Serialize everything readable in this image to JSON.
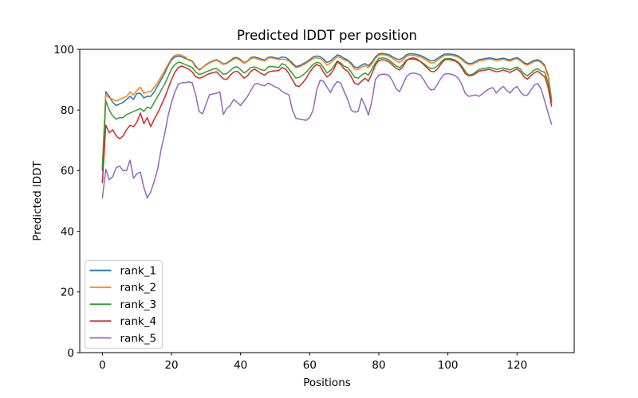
{
  "figure": {
    "background": "#ffffff",
    "frame_color": "#000000"
  },
  "chart_data": {
    "type": "line",
    "title": "Predicted lDDT per position",
    "xlabel": "Positions",
    "ylabel": "Predicted lDDT",
    "x_ticks": [
      0,
      20,
      40,
      60,
      80,
      100,
      120
    ],
    "y_ticks": [
      0,
      20,
      40,
      60,
      80,
      100
    ],
    "xlim": [
      -6.55,
      136.55
    ],
    "ylim": [
      0,
      100
    ],
    "grid": false,
    "legend_position": "lower left",
    "x_start": 0,
    "x_step": 1,
    "series": [
      {
        "name": "rank_1",
        "color": "#1f77b4",
        "values": [
          60,
          86,
          84.5,
          82.5,
          81.5,
          82,
          82.5,
          83.5,
          84.5,
          83.5,
          85.5,
          85.5,
          84,
          84.5,
          84.5,
          86,
          88,
          90,
          92,
          94.5,
          96.5,
          97.5,
          97.8,
          97.5,
          97,
          96.6,
          96.2,
          94.5,
          93.2,
          94,
          95,
          95.7,
          96.2,
          96.6,
          96,
          95.2,
          95.5,
          96.3,
          97.2,
          97.3,
          96.6,
          95.6,
          96.2,
          97.3,
          97.5,
          97.2,
          96.8,
          96.5,
          97.4,
          97.5,
          97.2,
          97,
          97.5,
          97.3,
          96.6,
          95.5,
          94.4,
          94.6,
          95.2,
          95.8,
          96.6,
          97.5,
          97.8,
          97.6,
          96.8,
          95.7,
          96.2,
          97.2,
          98.2,
          97.8,
          97,
          96.5,
          95.5,
          94.2,
          94,
          94.8,
          95.3,
          94.6,
          95.8,
          97.5,
          98.5,
          98.7,
          98.5,
          98.2,
          97.5,
          96.9,
          96.6,
          97.2,
          98.2,
          98.6,
          98.5,
          98.3,
          98,
          97.5,
          96.8,
          96.2,
          96.3,
          97,
          97.8,
          98.4,
          98.5,
          98.4,
          98.2,
          97.8,
          97,
          96,
          95.3,
          95.4,
          96,
          96.6,
          96.8,
          97,
          97.2,
          97,
          96.7,
          96.9,
          97.1,
          96.8,
          96.5,
          97,
          97.3,
          96.6,
          95.6,
          95.2,
          95.8,
          96.4,
          96.6,
          96,
          94.8,
          91.5,
          83.5
        ]
      },
      {
        "name": "rank_2",
        "color": "#ff7f0e",
        "values": [
          62,
          85,
          84,
          83.5,
          83,
          83.5,
          84,
          84.5,
          86,
          85,
          86.5,
          87.5,
          85.5,
          86,
          86,
          87.5,
          89,
          91,
          93,
          95,
          97,
          98,
          98.3,
          98,
          97.5,
          96.4,
          96,
          94,
          93.5,
          94,
          94.8,
          95.5,
          96,
          96.4,
          95.8,
          95,
          95.3,
          96,
          96.8,
          97,
          96.3,
          95.4,
          96,
          97,
          97.2,
          96.8,
          96.5,
          96.2,
          97.1,
          97.2,
          96.9,
          96.6,
          96.8,
          96.6,
          96.2,
          95,
          94,
          94.2,
          94.8,
          95.4,
          96.2,
          97,
          97.2,
          97,
          96.2,
          94.8,
          95.5,
          96.5,
          97.6,
          97.2,
          96.5,
          96.2,
          95,
          93.5,
          93.3,
          94.2,
          94.6,
          94,
          95.2,
          97,
          98.1,
          98.3,
          98.1,
          97.8,
          97,
          96.2,
          95.7,
          96.5,
          97.7,
          98.1,
          98,
          97.8,
          97.5,
          97,
          96.2,
          95.5,
          95.6,
          96.4,
          97.3,
          98,
          98.1,
          98,
          97.8,
          97.4,
          96.6,
          95.6,
          95,
          95.1,
          95.6,
          96.2,
          96.4,
          96.6,
          96.8,
          96.6,
          96.3,
          96.5,
          96.7,
          96.4,
          96.1,
          96.6,
          96.9,
          96.2,
          95.2,
          94.8,
          95.4,
          96,
          96.2,
          95.6,
          94.4,
          91,
          83
        ]
      },
      {
        "name": "rank_3",
        "color": "#2ca02c",
        "values": [
          61,
          83,
          80,
          78,
          77,
          77.5,
          77.5,
          78.5,
          79,
          79.5,
          80,
          80.5,
          79.5,
          81,
          80.5,
          82.5,
          84.5,
          86.5,
          88.5,
          91,
          93.5,
          95,
          95.8,
          95.5,
          95,
          94.5,
          94,
          92.5,
          91.8,
          92,
          92.6,
          93,
          93.5,
          93.7,
          92.8,
          91.8,
          92,
          93,
          94,
          94.3,
          93.3,
          92.2,
          93,
          94,
          94.2,
          93.8,
          93.3,
          93,
          94.2,
          94.4,
          94.2,
          94,
          95.3,
          94.8,
          93.5,
          92,
          90.5,
          90.8,
          91.5,
          92.5,
          93.8,
          95,
          95.7,
          95.5,
          94,
          92.2,
          93,
          94.5,
          96.2,
          95.5,
          94.4,
          94,
          92.5,
          90.8,
          90.5,
          91.5,
          92.2,
          91.5,
          93.5,
          95.5,
          97,
          97.2,
          97,
          96.5,
          95.5,
          94.5,
          94,
          95,
          96.5,
          96.8,
          96.8,
          96.5,
          96,
          95.3,
          94.4,
          93.7,
          93.8,
          94.6,
          95.8,
          96.8,
          97,
          96.9,
          96.5,
          95.8,
          94.5,
          92.8,
          91.5,
          91.7,
          92.5,
          93.3,
          93.6,
          93.8,
          94,
          93.8,
          93.4,
          93.6,
          93.9,
          93.5,
          93.2,
          93.8,
          94.2,
          93.4,
          92,
          91.3,
          92.2,
          93.2,
          93.6,
          92.8,
          92.5,
          89,
          82.5
        ]
      },
      {
        "name": "rank_4",
        "color": "#d62728",
        "values": [
          56,
          75,
          72.5,
          73.5,
          71.5,
          70.5,
          71.5,
          73.5,
          75,
          74.5,
          76,
          79,
          75.5,
          77.5,
          74.5,
          77,
          79,
          81.5,
          84,
          87,
          90,
          92.5,
          94,
          94.5,
          94,
          93.5,
          92.5,
          91,
          90.5,
          90.8,
          91.5,
          92,
          92.3,
          92.6,
          91.5,
          90.3,
          90.1,
          91.5,
          92.5,
          92.8,
          91.8,
          90.5,
          91.3,
          92.8,
          93.5,
          92.8,
          92,
          91.5,
          92.5,
          92.8,
          92.9,
          93,
          94,
          93.5,
          92,
          90,
          88,
          87.8,
          89,
          90.5,
          92.5,
          94,
          95,
          94.5,
          92.5,
          90.9,
          91.8,
          93.5,
          95.9,
          95,
          93.5,
          92.8,
          91,
          88.8,
          88.4,
          89.5,
          90.5,
          89.5,
          92,
          94.8,
          96.3,
          96.6,
          96.4,
          95.8,
          94.8,
          93.7,
          93.2,
          94.3,
          96.3,
          97,
          97.2,
          96.8,
          96,
          95,
          93.8,
          92.8,
          92.6,
          93.6,
          95.2,
          96.5,
          96.7,
          96.5,
          96.2,
          95.5,
          94,
          92,
          91.3,
          91.4,
          92,
          92.8,
          93,
          93.2,
          93.4,
          93,
          92.6,
          92.8,
          93.2,
          92.8,
          92.4,
          93,
          93.6,
          92.6,
          91,
          90.2,
          91.3,
          92.3,
          92.8,
          91.8,
          91,
          87.5,
          81.3
        ]
      },
      {
        "name": "rank_5",
        "color": "#9467bd",
        "values": [
          51,
          60.5,
          57,
          58,
          61,
          61.5,
          60,
          60,
          63.5,
          57.5,
          59,
          59.5,
          54.5,
          51,
          53,
          56.5,
          60.5,
          67,
          72,
          78,
          82.5,
          86,
          88.5,
          89,
          89,
          89.3,
          89,
          85,
          79.5,
          78.7,
          82,
          85,
          85.3,
          85.5,
          86,
          78.5,
          80.5,
          81.5,
          83.5,
          82.5,
          81.5,
          83,
          84.5,
          86.5,
          88.5,
          88.7,
          88.2,
          88,
          88.9,
          88.3,
          87.6,
          87.2,
          86.1,
          85.5,
          85,
          80,
          77.3,
          77,
          76.8,
          76.6,
          77.5,
          80,
          86.5,
          89.8,
          89.5,
          87.5,
          85.8,
          88,
          89.4,
          88.9,
          86,
          83.5,
          80,
          79.3,
          79.5,
          83.9,
          81.5,
          78.3,
          83,
          90,
          91.5,
          91.8,
          91.8,
          91.3,
          89.5,
          87,
          86,
          88.5,
          91,
          92,
          92.2,
          92,
          91.5,
          90,
          88,
          86.6,
          86.8,
          88.5,
          90.5,
          91.8,
          92,
          91.8,
          91.4,
          90.5,
          88.5,
          85.5,
          84.5,
          84.7,
          85,
          84.5,
          85.3,
          86.3,
          87,
          87.4,
          85.6,
          86.8,
          87.8,
          86.5,
          85.6,
          87,
          87.8,
          86,
          84.8,
          84.9,
          86.5,
          88.2,
          88.7,
          86.9,
          83,
          79,
          75.3
        ]
      }
    ]
  }
}
